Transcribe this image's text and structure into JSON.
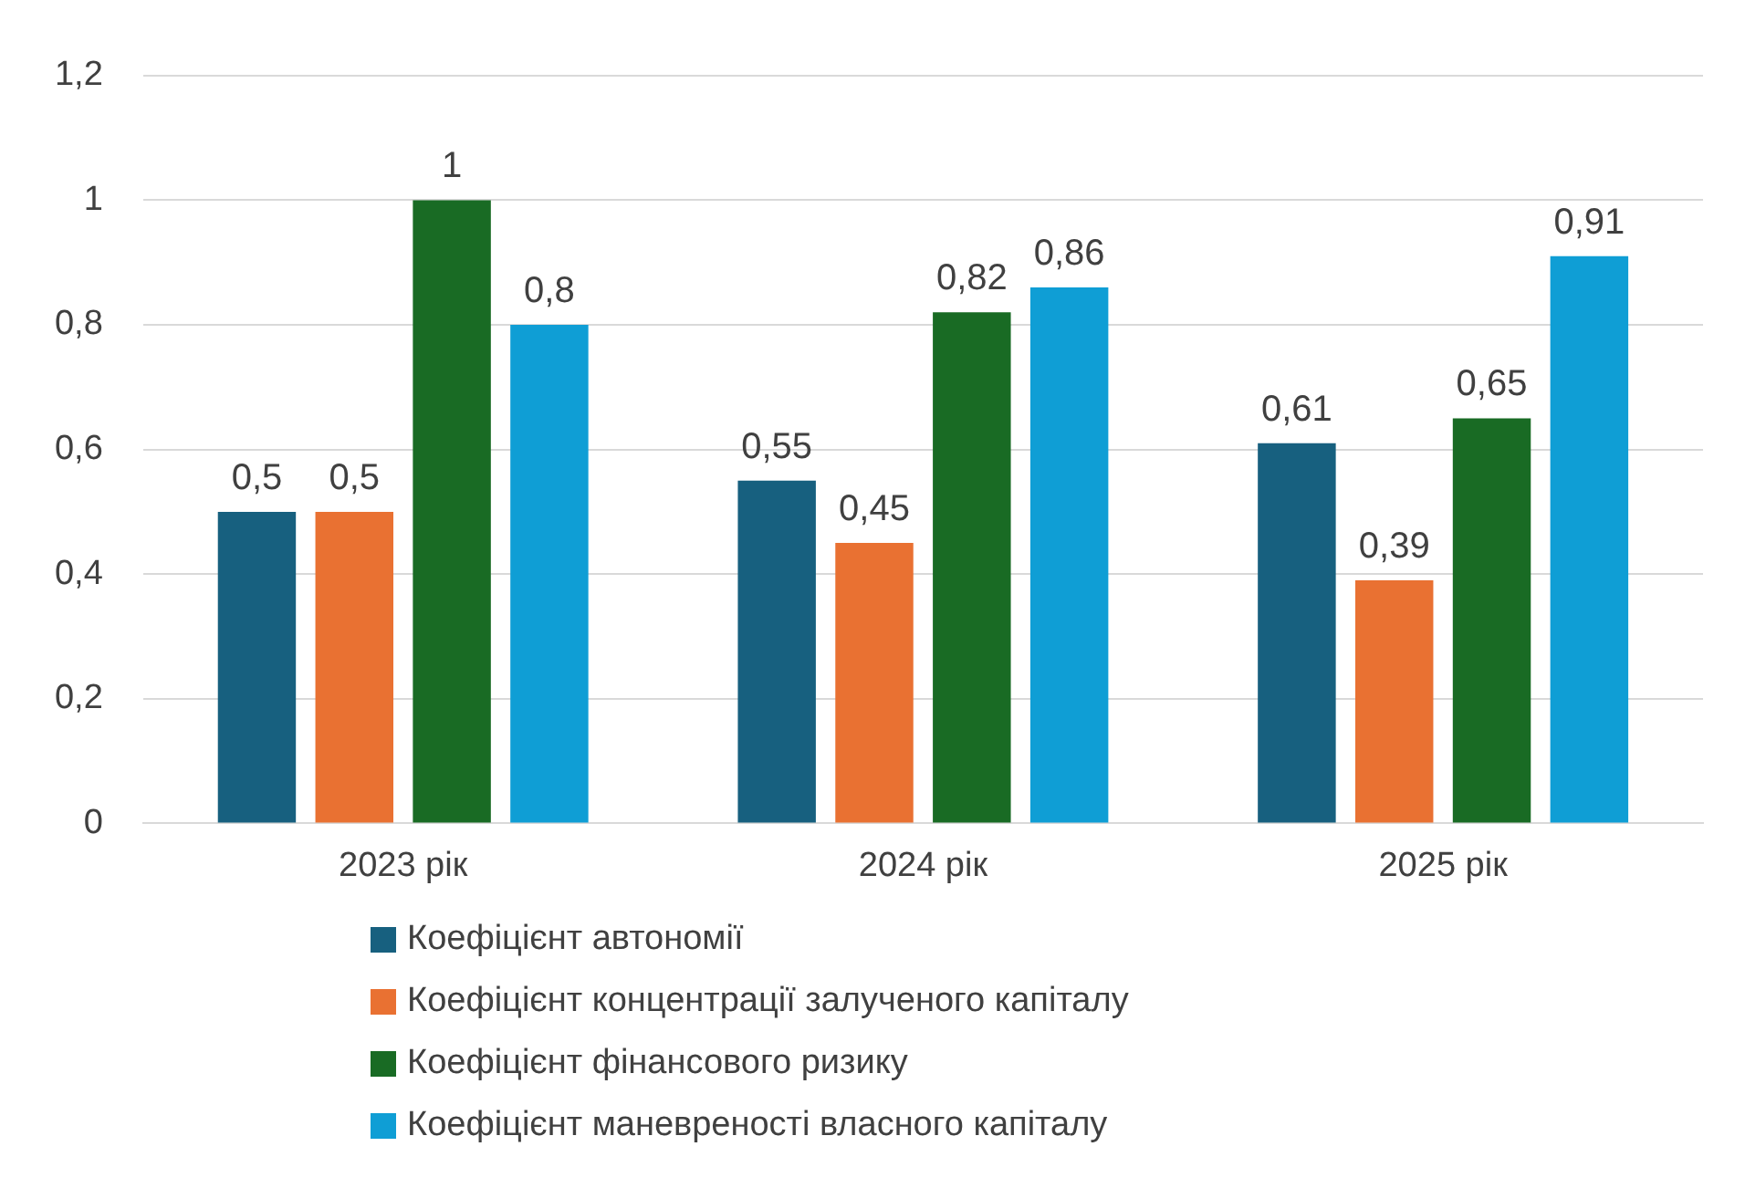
{
  "chart_data": {
    "type": "bar",
    "categories": [
      "2023 рік",
      "2024 рік",
      "2025 рік"
    ],
    "series": [
      {
        "name": "Коефіцієнт автономії",
        "color": "#17607f",
        "values": [
          0.5,
          0.55,
          0.61
        ],
        "value_labels": [
          "0,5",
          "0,55",
          "0,61"
        ]
      },
      {
        "name": "Коефіцієнт концентрації залученого капіталу",
        "color": "#e97132",
        "values": [
          0.5,
          0.45,
          0.39
        ],
        "value_labels": [
          "0,5",
          "0,45",
          "0,39"
        ]
      },
      {
        "name": "Коефіцієнт фінансового ризику",
        "color": "#196b24",
        "values": [
          1,
          0.82,
          0.65
        ],
        "value_labels": [
          "1",
          "0,82",
          "0,65"
        ]
      },
      {
        "name": "Коефіцієнт маневреності власного капіталу",
        "color": "#0f9ed5",
        "values": [
          0.8,
          0.86,
          0.91
        ],
        "value_labels": [
          "0,8",
          "0,86",
          "0,91"
        ]
      }
    ],
    "ylim": [
      0,
      1.2
    ],
    "yticks": [
      0,
      {
        "value": 0.2,
        "label": "0,2"
      },
      {
        "value": 0.4,
        "label": "0,4"
      },
      {
        "value": 0.6,
        "label": "0,6"
      },
      {
        "value": 0.8,
        "label": "0,8"
      },
      1,
      {
        "value": 1.2,
        "label": "1,2"
      }
    ],
    "grid": "y",
    "legend": "bottom"
  }
}
